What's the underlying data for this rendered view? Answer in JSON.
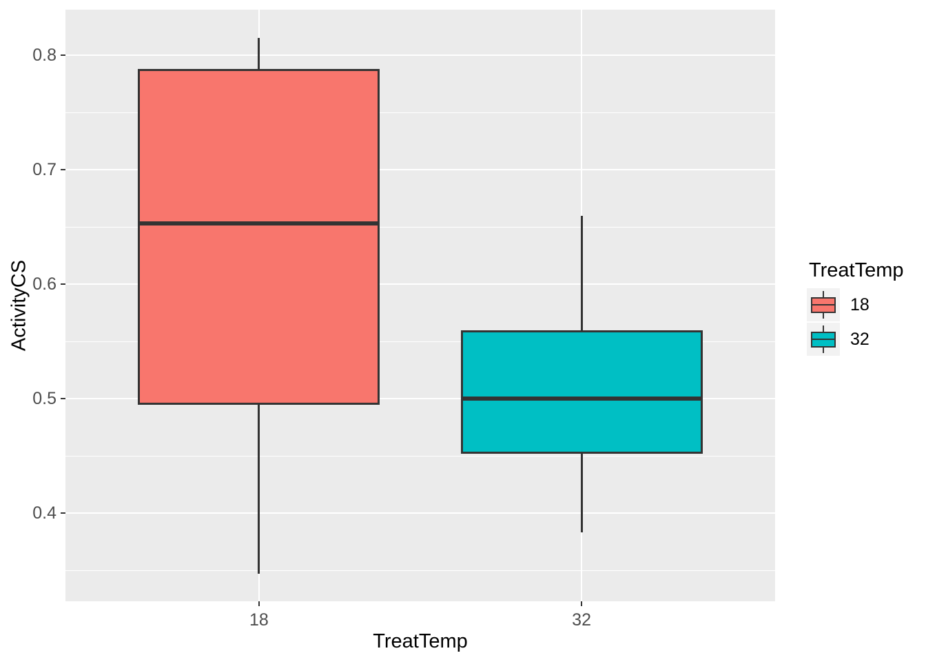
{
  "figure": {
    "background": "#ffffff",
    "panel_background": "#ebebeb",
    "gridline_color": "#ffffff",
    "axis_text_color": "#4d4d4d",
    "axis_title_color": "#000000",
    "box_outline_color": "#333333",
    "legend_key_background": "#f2f2f2"
  },
  "chart_data": {
    "type": "boxplot",
    "title": "",
    "xlabel": "TreatTemp",
    "ylabel": "ActivityCS",
    "categories": [
      "18",
      "32"
    ],
    "series": [
      {
        "name": "18",
        "color": "#F8766D",
        "min": 0.347,
        "q1": 0.495,
        "median": 0.653,
        "q3": 0.788,
        "max": 0.815
      },
      {
        "name": "32",
        "color": "#00BFC4",
        "min": 0.383,
        "q1": 0.452,
        "median": 0.5,
        "q3": 0.56,
        "max": 0.66
      }
    ],
    "ylim": [
      0.323,
      0.84
    ],
    "yticks_major": [
      0.4,
      0.5,
      0.6,
      0.7,
      0.8
    ],
    "ytick_labels": [
      "0.4",
      "0.5",
      "0.6",
      "0.7",
      "0.8"
    ],
    "yticks_minor": [
      0.35,
      0.45,
      0.55,
      0.65,
      0.75
    ],
    "grid": true,
    "legend": {
      "title": "TreatTemp",
      "position": "right",
      "entries": [
        {
          "label": "18",
          "color": "#F8766D"
        },
        {
          "label": "32",
          "color": "#00BFC4"
        }
      ]
    }
  }
}
